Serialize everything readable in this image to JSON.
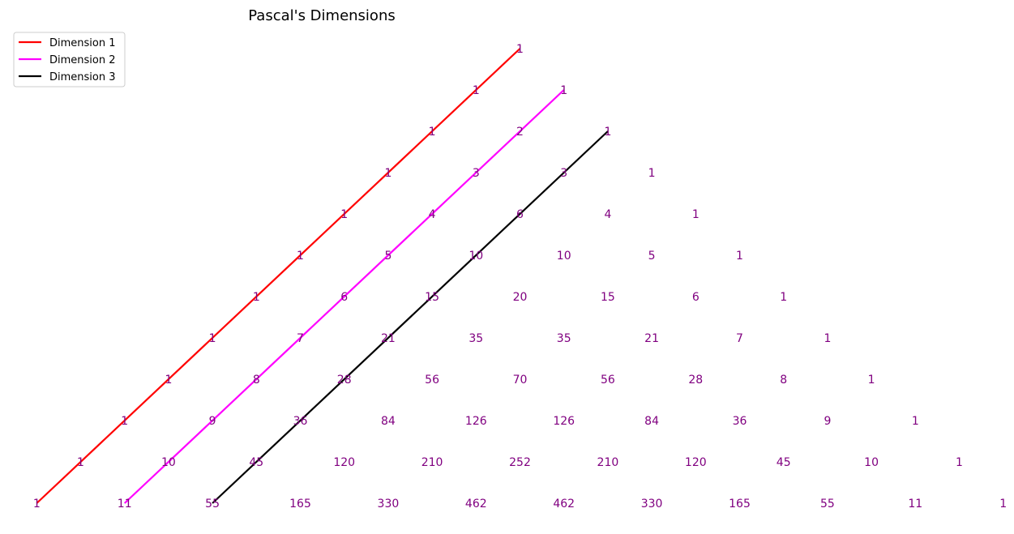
{
  "chart_data": {
    "type": "line",
    "title": "Pascal's Dimensions",
    "xlabel": "",
    "ylabel": "",
    "grid": false,
    "axes_visible": false,
    "legend_position": "top-left",
    "xlim": [
      -11.4,
      11.6
    ],
    "ylim": [
      -11.6,
      0.9
    ],
    "colors": {
      "number_text": "#800080"
    },
    "series": [
      {
        "name": "Dimension 1",
        "color": "#ff0000",
        "x": [
          0,
          -11
        ],
        "y": [
          0,
          -11
        ]
      },
      {
        "name": "Dimension 2",
        "color": "#ff00ff",
        "x": [
          1,
          -9
        ],
        "y": [
          -1,
          -11
        ]
      },
      {
        "name": "Dimension 3",
        "color": "#000000",
        "x": [
          2,
          -7
        ],
        "y": [
          -2,
          -11
        ]
      }
    ],
    "triangle_rows": [
      [
        "1"
      ],
      [
        "1",
        "1"
      ],
      [
        "1",
        "2",
        "1"
      ],
      [
        "1",
        "3",
        "3",
        "1"
      ],
      [
        "1",
        "4",
        "6",
        "4",
        "1"
      ],
      [
        "1",
        "5",
        "10",
        "10",
        "5",
        "1"
      ],
      [
        "1",
        "6",
        "15",
        "20",
        "15",
        "6",
        "1"
      ],
      [
        "1",
        "7",
        "21",
        "35",
        "35",
        "21",
        "7",
        "1"
      ],
      [
        "1",
        "8",
        "28",
        "56",
        "70",
        "56",
        "28",
        "8",
        "1"
      ],
      [
        "1",
        "9",
        "36",
        "84",
        "126",
        "126",
        "84",
        "36",
        "9",
        "1"
      ],
      [
        "1",
        "10",
        "45",
        "120",
        "210",
        "252",
        "210",
        "120",
        "45",
        "10",
        "1"
      ],
      [
        "1",
        "11",
        "55",
        "165",
        "330",
        "462",
        "462",
        "330",
        "165",
        "55",
        "11",
        "1"
      ]
    ]
  }
}
